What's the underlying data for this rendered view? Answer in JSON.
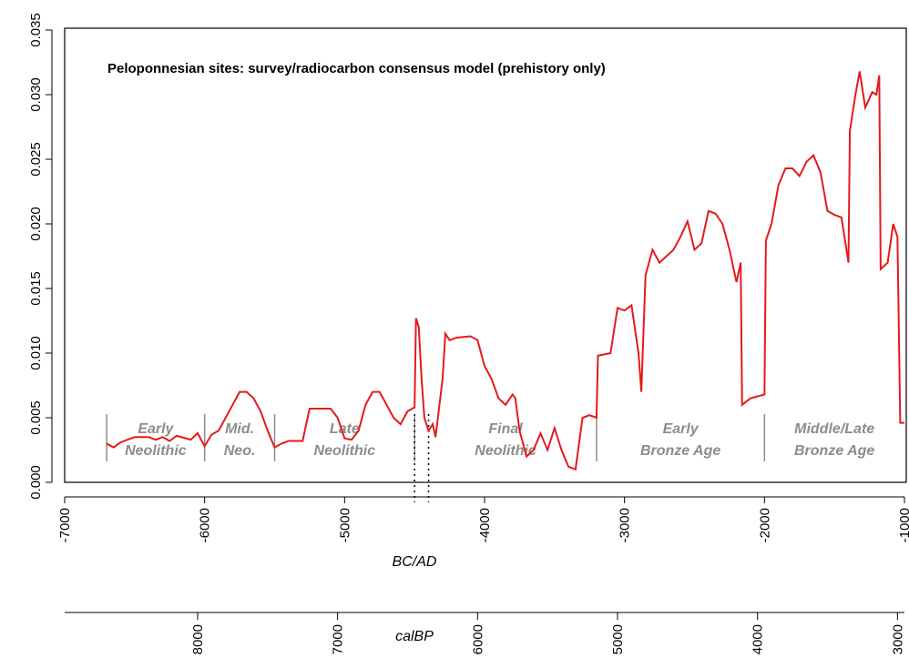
{
  "chart_data": {
    "type": "line",
    "title": "Peloponnesian sites: survey/radiocarbon consensus model (prehistory only)",
    "xlabel": "BC/AD",
    "x2label": "calBP",
    "xlim": [
      -7000,
      -1000
    ],
    "xticks": [
      -7000,
      -6000,
      -5000,
      -4000,
      -3000,
      -2000,
      -1000
    ],
    "x2lim": [
      8950,
      2950
    ],
    "x2ticks": [
      8000,
      7000,
      6000,
      5000,
      4000,
      3000
    ],
    "ylim": [
      0,
      0.035
    ],
    "yticks": [
      {
        "value": 0,
        "label": "0.000"
      },
      {
        "value": 0.005,
        "label": "0.005"
      },
      {
        "value": 0.01,
        "label": "0.010"
      },
      {
        "value": 0.015,
        "label": "0.015"
      },
      {
        "value": 0.02,
        "label": "0.020"
      },
      {
        "value": 0.025,
        "label": "0.025"
      },
      {
        "value": 0.03,
        "label": "0.030"
      },
      {
        "value": 0.035,
        "label": "0.035"
      }
    ],
    "periods": [
      {
        "label": [
          "Early",
          "Neolithic"
        ],
        "start": -6700,
        "end": -6000
      },
      {
        "label": [
          "Mid.",
          "Neo."
        ],
        "start": -6000,
        "end": -5500
      },
      {
        "label": [
          "Late",
          "Neolithic"
        ],
        "start": -5500,
        "end": -4500
      },
      {
        "label": [
          "Final",
          "Neolithic"
        ],
        "start": -4500,
        "end": -3200
      },
      {
        "label": [
          "Early",
          "Bronze Age"
        ],
        "start": -3200,
        "end": -2000
      },
      {
        "label": [
          "Middle/Late",
          "Bronze Age"
        ],
        "start": -2000,
        "end": -1000
      }
    ],
    "markers": [
      -4500,
      -4400
    ],
    "series": [
      {
        "color": "#e31a1c",
        "x": [
          -6700,
          -6650,
          -6600,
          -6500,
          -6400,
          -6350,
          -6300,
          -6250,
          -6200,
          -6100,
          -6050,
          -6000,
          -5950,
          -5900,
          -5850,
          -5800,
          -5750,
          -5700,
          -5650,
          -5600,
          -5550,
          -5500,
          -5450,
          -5400,
          -5300,
          -5250,
          -5100,
          -5050,
          -5000,
          -4950,
          -4900,
          -4850,
          -4800,
          -4750,
          -4700,
          -4650,
          -4600,
          -4550,
          -4500,
          -4490,
          -4470,
          -4450,
          -4430,
          -4400,
          -4370,
          -4350,
          -4300,
          -4280,
          -4250,
          -4200,
          -4100,
          -4050,
          -4000,
          -3950,
          -3900,
          -3850,
          -3800,
          -3780,
          -3750,
          -3700,
          -3650,
          -3600,
          -3550,
          -3500,
          -3450,
          -3400,
          -3350,
          -3300,
          -3250,
          -3200,
          -3190,
          -3100,
          -3050,
          -3000,
          -2950,
          -2900,
          -2880,
          -2850,
          -2800,
          -2750,
          -2700,
          -2650,
          -2600,
          -2550,
          -2500,
          -2450,
          -2400,
          -2350,
          -2300,
          -2250,
          -2200,
          -2170,
          -2160,
          -2100,
          -2000,
          -1990,
          -1950,
          -1900,
          -1850,
          -1800,
          -1750,
          -1700,
          -1650,
          -1600,
          -1550,
          -1500,
          -1450,
          -1400,
          -1390,
          -1350,
          -1320,
          -1280,
          -1230,
          -1200,
          -1180,
          -1170,
          -1120,
          -1080,
          -1050,
          -1030,
          -1000
        ],
        "values": [
          0.003,
          0.0027,
          0.0031,
          0.0035,
          0.0035,
          0.0033,
          0.0035,
          0.0032,
          0.0036,
          0.0033,
          0.0038,
          0.0028,
          0.0037,
          0.004,
          0.005,
          0.006,
          0.007,
          0.007,
          0.0065,
          0.0055,
          0.004,
          0.0027,
          0.003,
          0.0032,
          0.0032,
          0.0057,
          0.0057,
          0.005,
          0.0034,
          0.0033,
          0.004,
          0.006,
          0.007,
          0.007,
          0.006,
          0.005,
          0.0045,
          0.0055,
          0.0058,
          0.0127,
          0.012,
          0.008,
          0.005,
          0.004,
          0.0045,
          0.0035,
          0.008,
          0.0115,
          0.011,
          0.0112,
          0.0113,
          0.011,
          0.009,
          0.008,
          0.0065,
          0.006,
          0.0068,
          0.0065,
          0.004,
          0.002,
          0.0025,
          0.0038,
          0.0025,
          0.0042,
          0.0025,
          0.0012,
          0.001,
          0.005,
          0.0052,
          0.005,
          0.0098,
          0.01,
          0.0135,
          0.0133,
          0.0137,
          0.01,
          0.007,
          0.016,
          0.018,
          0.017,
          0.0175,
          0.018,
          0.019,
          0.0202,
          0.018,
          0.0185,
          0.021,
          0.0208,
          0.02,
          0.018,
          0.0155,
          0.017,
          0.006,
          0.0065,
          0.0068,
          0.0187,
          0.02,
          0.023,
          0.0243,
          0.0243,
          0.0237,
          0.0248,
          0.0253,
          0.024,
          0.021,
          0.0207,
          0.0205,
          0.017,
          0.0272,
          0.03,
          0.0318,
          0.029,
          0.0302,
          0.03,
          0.0315,
          0.0165,
          0.017,
          0.02,
          0.019,
          0.0046,
          0.0046
        ]
      }
    ]
  }
}
